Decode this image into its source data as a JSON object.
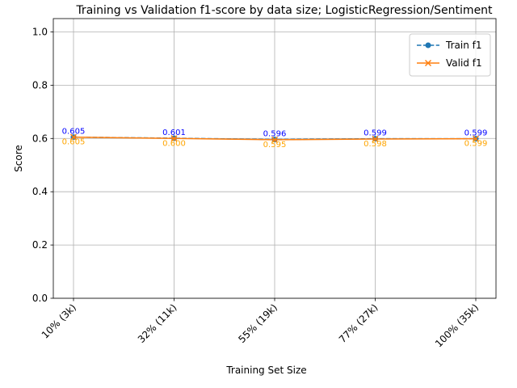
{
  "chart_data": {
    "type": "line",
    "title": "Training vs Validation f1-score by data size; LogisticRegression/Sentiment",
    "xlabel": "Training Set Size",
    "ylabel": "Score",
    "categories": [
      "10% (3k)",
      "32% (11k)",
      "55% (19k)",
      "77% (27k)",
      "100% (35k)"
    ],
    "ylim": [
      0,
      1.05
    ],
    "yticks": [
      "0.0",
      "0.2",
      "0.4",
      "0.6",
      "0.8",
      "1.0"
    ],
    "grid": true,
    "legend_position": "top-right",
    "series": [
      {
        "name": "Train f1",
        "values": [
          0.605,
          0.601,
          0.596,
          0.599,
          0.599
        ],
        "labels": [
          "0.605",
          "0.601",
          "0.596",
          "0.599",
          "0.599"
        ],
        "color": "#1f77b4",
        "label_color": "#0000ff",
        "marker": "circle",
        "linestyle": "dashed"
      },
      {
        "name": "Valid f1",
        "values": [
          0.605,
          0.6,
          0.595,
          0.598,
          0.599
        ],
        "labels": [
          "0.605",
          "0.600",
          "0.595",
          "0.598",
          "0.599"
        ],
        "color": "#ff7f0e",
        "label_color": "#ffa500",
        "marker": "x",
        "linestyle": "solid"
      }
    ]
  }
}
